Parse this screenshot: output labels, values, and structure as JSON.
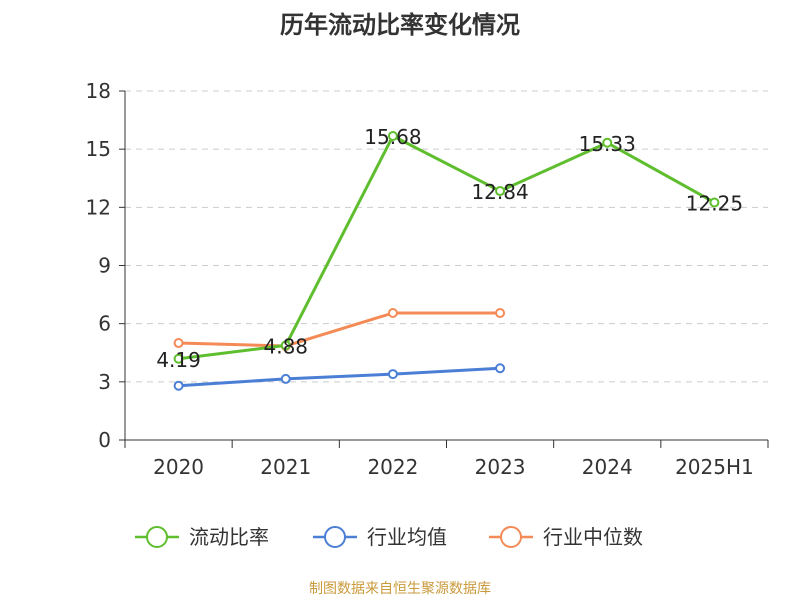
{
  "chart_data": {
    "type": "line",
    "title": "历年流动比率变化情况",
    "categories": [
      "2020",
      "2021",
      "2022",
      "2023",
      "2024",
      "2025H1"
    ],
    "ylim": [
      0,
      18
    ],
    "yticks": [
      0,
      3,
      6,
      9,
      12,
      15,
      18
    ],
    "grid": true,
    "legend_position": "bottom",
    "series": [
      {
        "name": "流动比率",
        "color": "#5fbe2e",
        "values": [
          4.19,
          4.88,
          15.68,
          12.84,
          15.33,
          12.25
        ],
        "labels": [
          "4.19",
          "4.88",
          "15.68",
          "12.84",
          "15.33",
          "12.25"
        ]
      },
      {
        "name": "行业均值",
        "color": "#4b7fd6",
        "values": [
          2.8,
          3.15,
          3.4,
          3.7,
          null,
          null
        ]
      },
      {
        "name": "行业中位数",
        "color": "#f48b57",
        "values": [
          5.0,
          4.85,
          6.55,
          6.55,
          null,
          null
        ]
      }
    ]
  },
  "source": "制图数据来自恒生聚源数据库"
}
